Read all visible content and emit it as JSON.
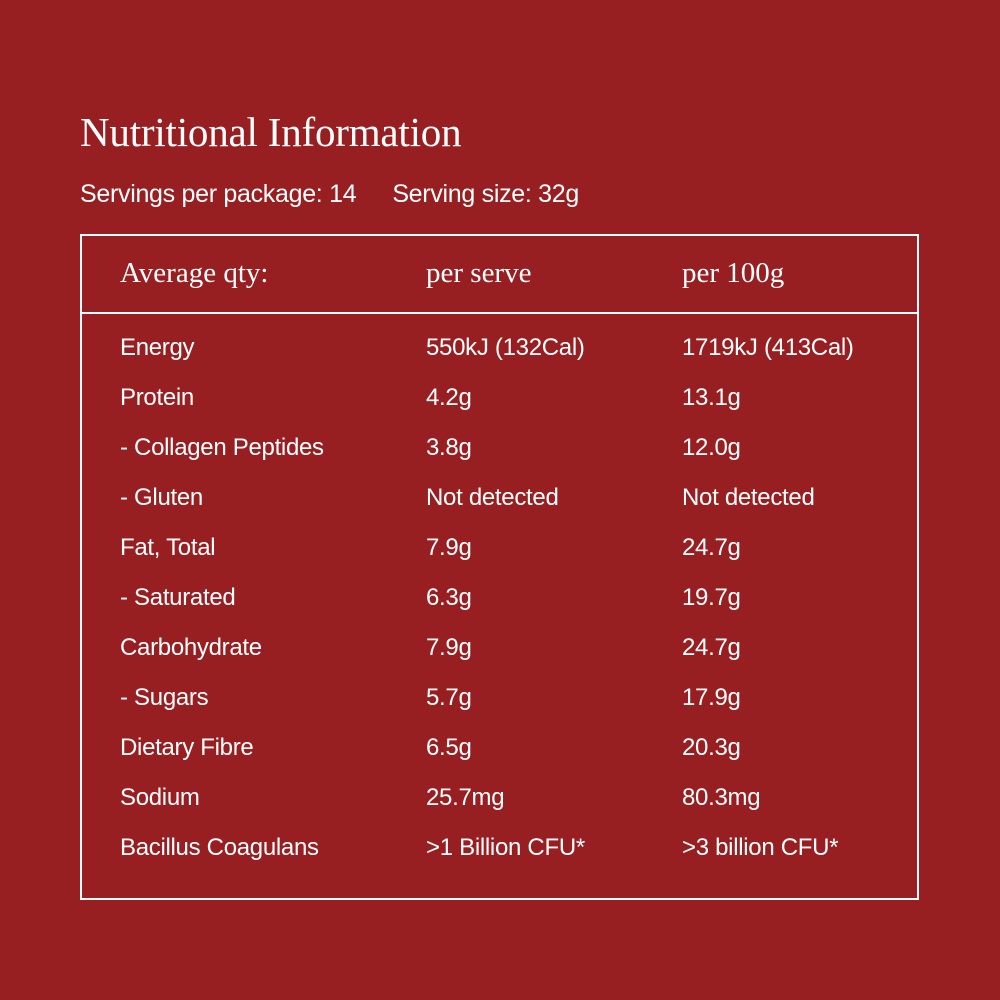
{
  "title": "Nutritional Information",
  "servings_per_package": "Servings per package: 14",
  "serving_size": "Serving size: 32g",
  "header": {
    "col1": "Average qty:",
    "col2": "per serve",
    "col3": "per 100g"
  },
  "rows": [
    {
      "name": "Energy",
      "per_serve": "550kJ (132Cal)",
      "per_100g": "1719kJ  (413Cal)"
    },
    {
      "name": "Protein",
      "per_serve": "4.2g",
      "per_100g": "13.1g"
    },
    {
      "name": "- Collagen Peptides",
      "per_serve": "3.8g",
      "per_100g": "12.0g"
    },
    {
      "name": "- Gluten",
      "per_serve": "Not detected",
      "per_100g": "Not detected"
    },
    {
      "name": "Fat, Total",
      "per_serve": "7.9g",
      "per_100g": "24.7g"
    },
    {
      "name": "- Saturated",
      "per_serve": "6.3g",
      "per_100g": "19.7g"
    },
    {
      "name": "Carbohydrate",
      "per_serve": "7.9g",
      "per_100g": "24.7g"
    },
    {
      "name": "- Sugars",
      "per_serve": "5.7g",
      "per_100g": "17.9g"
    },
    {
      "name": "Dietary Fibre",
      "per_serve": "6.5g",
      "per_100g": "20.3g"
    },
    {
      "name": "Sodium",
      "per_serve": "25.7mg",
      "per_100g": "80.3mg"
    },
    {
      "name": "Bacillus Coagulans",
      "per_serve": ">1 Billion CFU*",
      "per_100g": ">3 billion CFU*"
    }
  ],
  "colors": {
    "background": "#971f22",
    "text": "#ffffff"
  }
}
